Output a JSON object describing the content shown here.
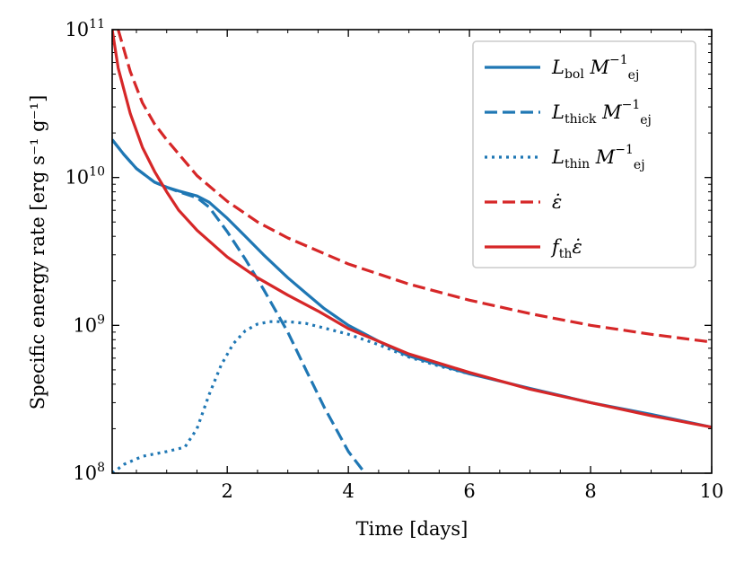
{
  "chart_data": {
    "type": "line",
    "title": "",
    "xlabel": "Time [days]",
    "ylabel": "Specific energy rate [erg s⁻¹ g⁻¹]",
    "xlim": [
      0.1,
      10
    ],
    "ylim": [
      100000000,
      100000000000
    ],
    "yscale": "log",
    "xticks": [
      2,
      4,
      6,
      8,
      10
    ],
    "yticks": [
      {
        "value": 100000000,
        "base": "10",
        "exp": "8"
      },
      {
        "value": 1000000000,
        "base": "10",
        "exp": "9"
      },
      {
        "value": 10000000000,
        "base": "10",
        "exp": "10"
      },
      {
        "value": 100000000000,
        "base": "10",
        "exp": "11"
      }
    ],
    "legend_position": "top-right",
    "colors": {
      "blue": "#1f77b4",
      "red": "#d62728"
    },
    "series": [
      {
        "name": "L_bol M_ej^-1",
        "legend": {
          "main": "L",
          "sub": "bol",
          "tail": " M",
          "tail_sub": "ej",
          "sup": "−1"
        },
        "color": "#1f77b4",
        "style": "solid",
        "x": [
          0.1,
          0.3,
          0.5,
          0.8,
          1.0,
          1.2,
          1.5,
          1.7,
          2.0,
          2.3,
          2.6,
          3.0,
          3.3,
          3.6,
          4.0,
          4.5,
          5.0,
          5.5,
          6.0,
          7.0,
          8.0,
          9.0,
          10.0
        ],
        "values": [
          18000000000,
          14200000000,
          11500000000,
          9300000000,
          8600000000,
          8100000000,
          7500000000,
          6800000000,
          5300000000,
          4000000000,
          3000000000,
          2100000000,
          1650000000,
          1300000000,
          1000000000,
          780000000,
          620000000,
          540000000,
          470000000,
          375000000,
          300000000,
          250000000,
          205000000
        ]
      },
      {
        "name": "L_thick M_ej^-1",
        "legend": {
          "main": "L",
          "sub": "thick",
          "tail": " M",
          "tail_sub": "ej",
          "sup": "−1"
        },
        "color": "#1f77b4",
        "style": "dashed",
        "x": [
          0.1,
          0.3,
          0.5,
          0.8,
          1.0,
          1.2,
          1.5,
          1.7,
          2.0,
          2.3,
          2.6,
          3.0,
          3.3,
          3.6,
          4.0,
          4.3
        ],
        "values": [
          18000000000,
          14200000000,
          11500000000,
          9300000000,
          8600000000,
          8000000000,
          7300000000,
          6300000000,
          4300000000,
          2800000000,
          1750000000,
          900000000,
          500000000,
          280000000,
          140000000,
          97000000
        ]
      },
      {
        "name": "L_thin M_ej^-1",
        "legend": {
          "main": "L",
          "sub": "thin",
          "tail": " M",
          "tail_sub": "ej",
          "sup": "−1"
        },
        "color": "#1f77b4",
        "style": "dotted",
        "x": [
          0.1,
          0.3,
          0.6,
          1.0,
          1.3,
          1.5,
          1.7,
          1.9,
          2.1,
          2.3,
          2.5,
          2.7,
          3.0,
          3.3,
          3.6,
          4.0,
          4.5,
          5.0,
          5.5,
          6.0
        ],
        "values": [
          100000000,
          115000000,
          130000000,
          140000000,
          150000000,
          200000000,
          340000000,
          540000000,
          750000000,
          920000000,
          1020000000,
          1060000000,
          1060000000,
          1030000000,
          960000000,
          870000000,
          740000000,
          610000000,
          530000000,
          470000000
        ]
      },
      {
        "name": "epsilon_dot",
        "legend": {
          "main": "ε̇",
          "sub": "",
          "tail": "",
          "tail_sub": "",
          "sup": ""
        },
        "color": "#d62728",
        "style": "dashed",
        "x": [
          0.2,
          0.4,
          0.6,
          0.8,
          1.0,
          1.5,
          2.0,
          2.5,
          3.0,
          4.0,
          5.0,
          6.0,
          7.0,
          8.0,
          9.0,
          10.0
        ],
        "values": [
          100000000000,
          52000000000,
          32000000000,
          23000000000,
          18000000000,
          10300000000,
          6900000000,
          5000000000,
          3900000000,
          2600000000,
          1900000000,
          1480000000,
          1200000000,
          1000000000,
          870000000,
          770000000
        ]
      },
      {
        "name": "f_th epsilon_dot",
        "legend": {
          "main": "f",
          "sub": "th",
          "tail": "ε̇",
          "tail_sub": "",
          "sup": ""
        },
        "color": "#d62728",
        "style": "solid",
        "x": [
          0.1,
          0.2,
          0.4,
          0.6,
          0.8,
          1.0,
          1.2,
          1.5,
          2.0,
          2.5,
          3.0,
          3.5,
          4.0,
          5.0,
          6.0,
          7.0,
          8.0,
          9.0,
          10.0
        ],
        "values": [
          100000000000,
          55000000000,
          27000000000,
          16000000000,
          11000000000,
          8000000000,
          6000000000,
          4400000000,
          2900000000,
          2100000000,
          1600000000,
          1250000000,
          950000000,
          640000000,
          480000000,
          370000000,
          300000000,
          245000000,
          205000000
        ]
      }
    ]
  }
}
